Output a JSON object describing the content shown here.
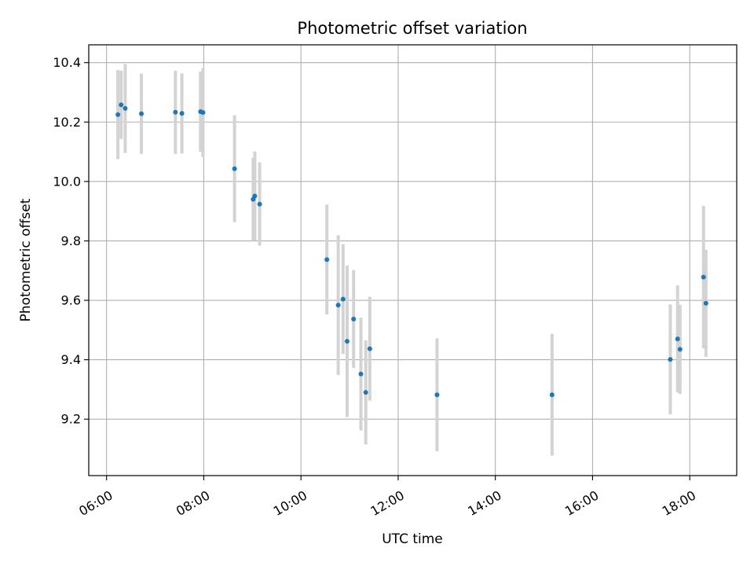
{
  "chart_data": {
    "type": "scatter",
    "title": "Photometric offset variation",
    "xlabel": "UTC time",
    "ylabel": "Photometric offset",
    "x_ticks": [
      "06:00",
      "08:00",
      "10:00",
      "12:00",
      "14:00",
      "16:00",
      "18:00"
    ],
    "y_ticks": [
      "9.2",
      "9.4",
      "9.6",
      "9.8",
      "10.0",
      "10.2",
      "10.4"
    ],
    "xlim": [
      "05:38",
      "18:58"
    ],
    "ylim": [
      9.01,
      10.46
    ],
    "grid": true,
    "marker_color": "#1f77b4",
    "errorbar_color": "#d3d3d3",
    "points": [
      {
        "t": "06:14",
        "y": 10.225,
        "err": 0.15
      },
      {
        "t": "06:18",
        "y": 10.258,
        "err": 0.115
      },
      {
        "t": "06:23",
        "y": 10.246,
        "err": 0.15
      },
      {
        "t": "06:43",
        "y": 10.228,
        "err": 0.135
      },
      {
        "t": "07:25",
        "y": 10.233,
        "err": 0.14
      },
      {
        "t": "07:33",
        "y": 10.229,
        "err": 0.135
      },
      {
        "t": "07:56",
        "y": 10.235,
        "err": 0.135
      },
      {
        "t": "07:59",
        "y": 10.232,
        "err": 0.15
      },
      {
        "t": "08:38",
        "y": 10.043,
        "err": 0.18
      },
      {
        "t": "09:01",
        "y": 9.94,
        "err": 0.14
      },
      {
        "t": "09:03",
        "y": 9.951,
        "err": 0.15
      },
      {
        "t": "09:09",
        "y": 9.924,
        "err": 0.14
      },
      {
        "t": "10:32",
        "y": 9.737,
        "err": 0.185
      },
      {
        "t": "10:46",
        "y": 9.584,
        "err": 0.235
      },
      {
        "t": "10:52",
        "y": 9.604,
        "err": 0.185
      },
      {
        "t": "10:57",
        "y": 9.462,
        "err": 0.255
      },
      {
        "t": "11:05",
        "y": 9.537,
        "err": 0.165
      },
      {
        "t": "11:14",
        "y": 9.352,
        "err": 0.19
      },
      {
        "t": "11:20",
        "y": 9.29,
        "err": 0.175
      },
      {
        "t": "11:25",
        "y": 9.437,
        "err": 0.175
      },
      {
        "t": "12:48",
        "y": 9.282,
        "err": 0.19
      },
      {
        "t": "15:10",
        "y": 9.282,
        "err": 0.205
      },
      {
        "t": "17:36",
        "y": 9.401,
        "err": 0.185
      },
      {
        "t": "17:45",
        "y": 9.47,
        "err": 0.18
      },
      {
        "t": "17:48",
        "y": 9.435,
        "err": 0.15
      },
      {
        "t": "18:17",
        "y": 9.678,
        "err": 0.24
      },
      {
        "t": "18:20",
        "y": 9.59,
        "err": 0.18
      }
    ]
  }
}
